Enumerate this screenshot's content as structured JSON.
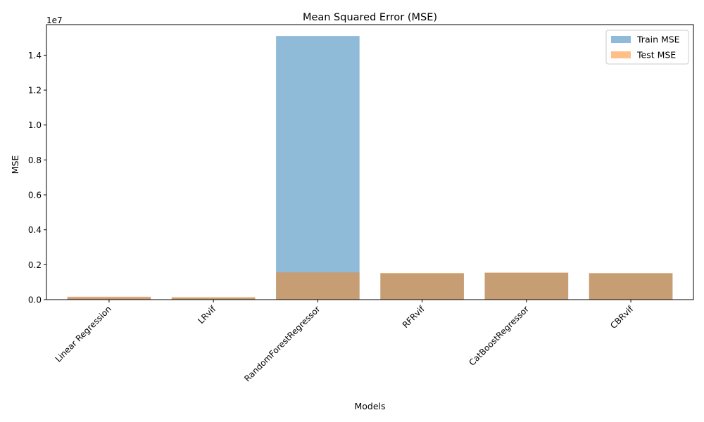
{
  "chart_data": {
    "type": "bar",
    "title": "Mean Squared Error (MSE)",
    "xlabel": "Models",
    "ylabel": "MSE",
    "y_offset_label": "1e7",
    "categories": [
      "Linear Regression",
      "LRvif",
      "RandomForestRegressor",
      "RFRvif",
      "CatBoostRegressor",
      "CBRvif"
    ],
    "series": [
      {
        "name": "Train MSE",
        "color": "#1f77b4",
        "alpha": 0.5,
        "values": [
          130000,
          110000,
          15100000,
          1500000,
          1540000,
          1510000
        ]
      },
      {
        "name": "Test MSE",
        "color": "#ff7f0e",
        "alpha": 0.5,
        "values": [
          170000,
          140000,
          1560000,
          1530000,
          1550000,
          1520000
        ]
      }
    ],
    "ylim": [
      0,
      15750000
    ],
    "yticks": [
      0,
      2000000,
      4000000,
      6000000,
      8000000,
      10000000,
      12000000,
      14000000
    ],
    "ytick_labels": [
      "0.0",
      "0.2",
      "0.4",
      "0.6",
      "0.8",
      "1.0",
      "1.2",
      "1.4"
    ],
    "legend_position": "top-right",
    "grid": false
  }
}
